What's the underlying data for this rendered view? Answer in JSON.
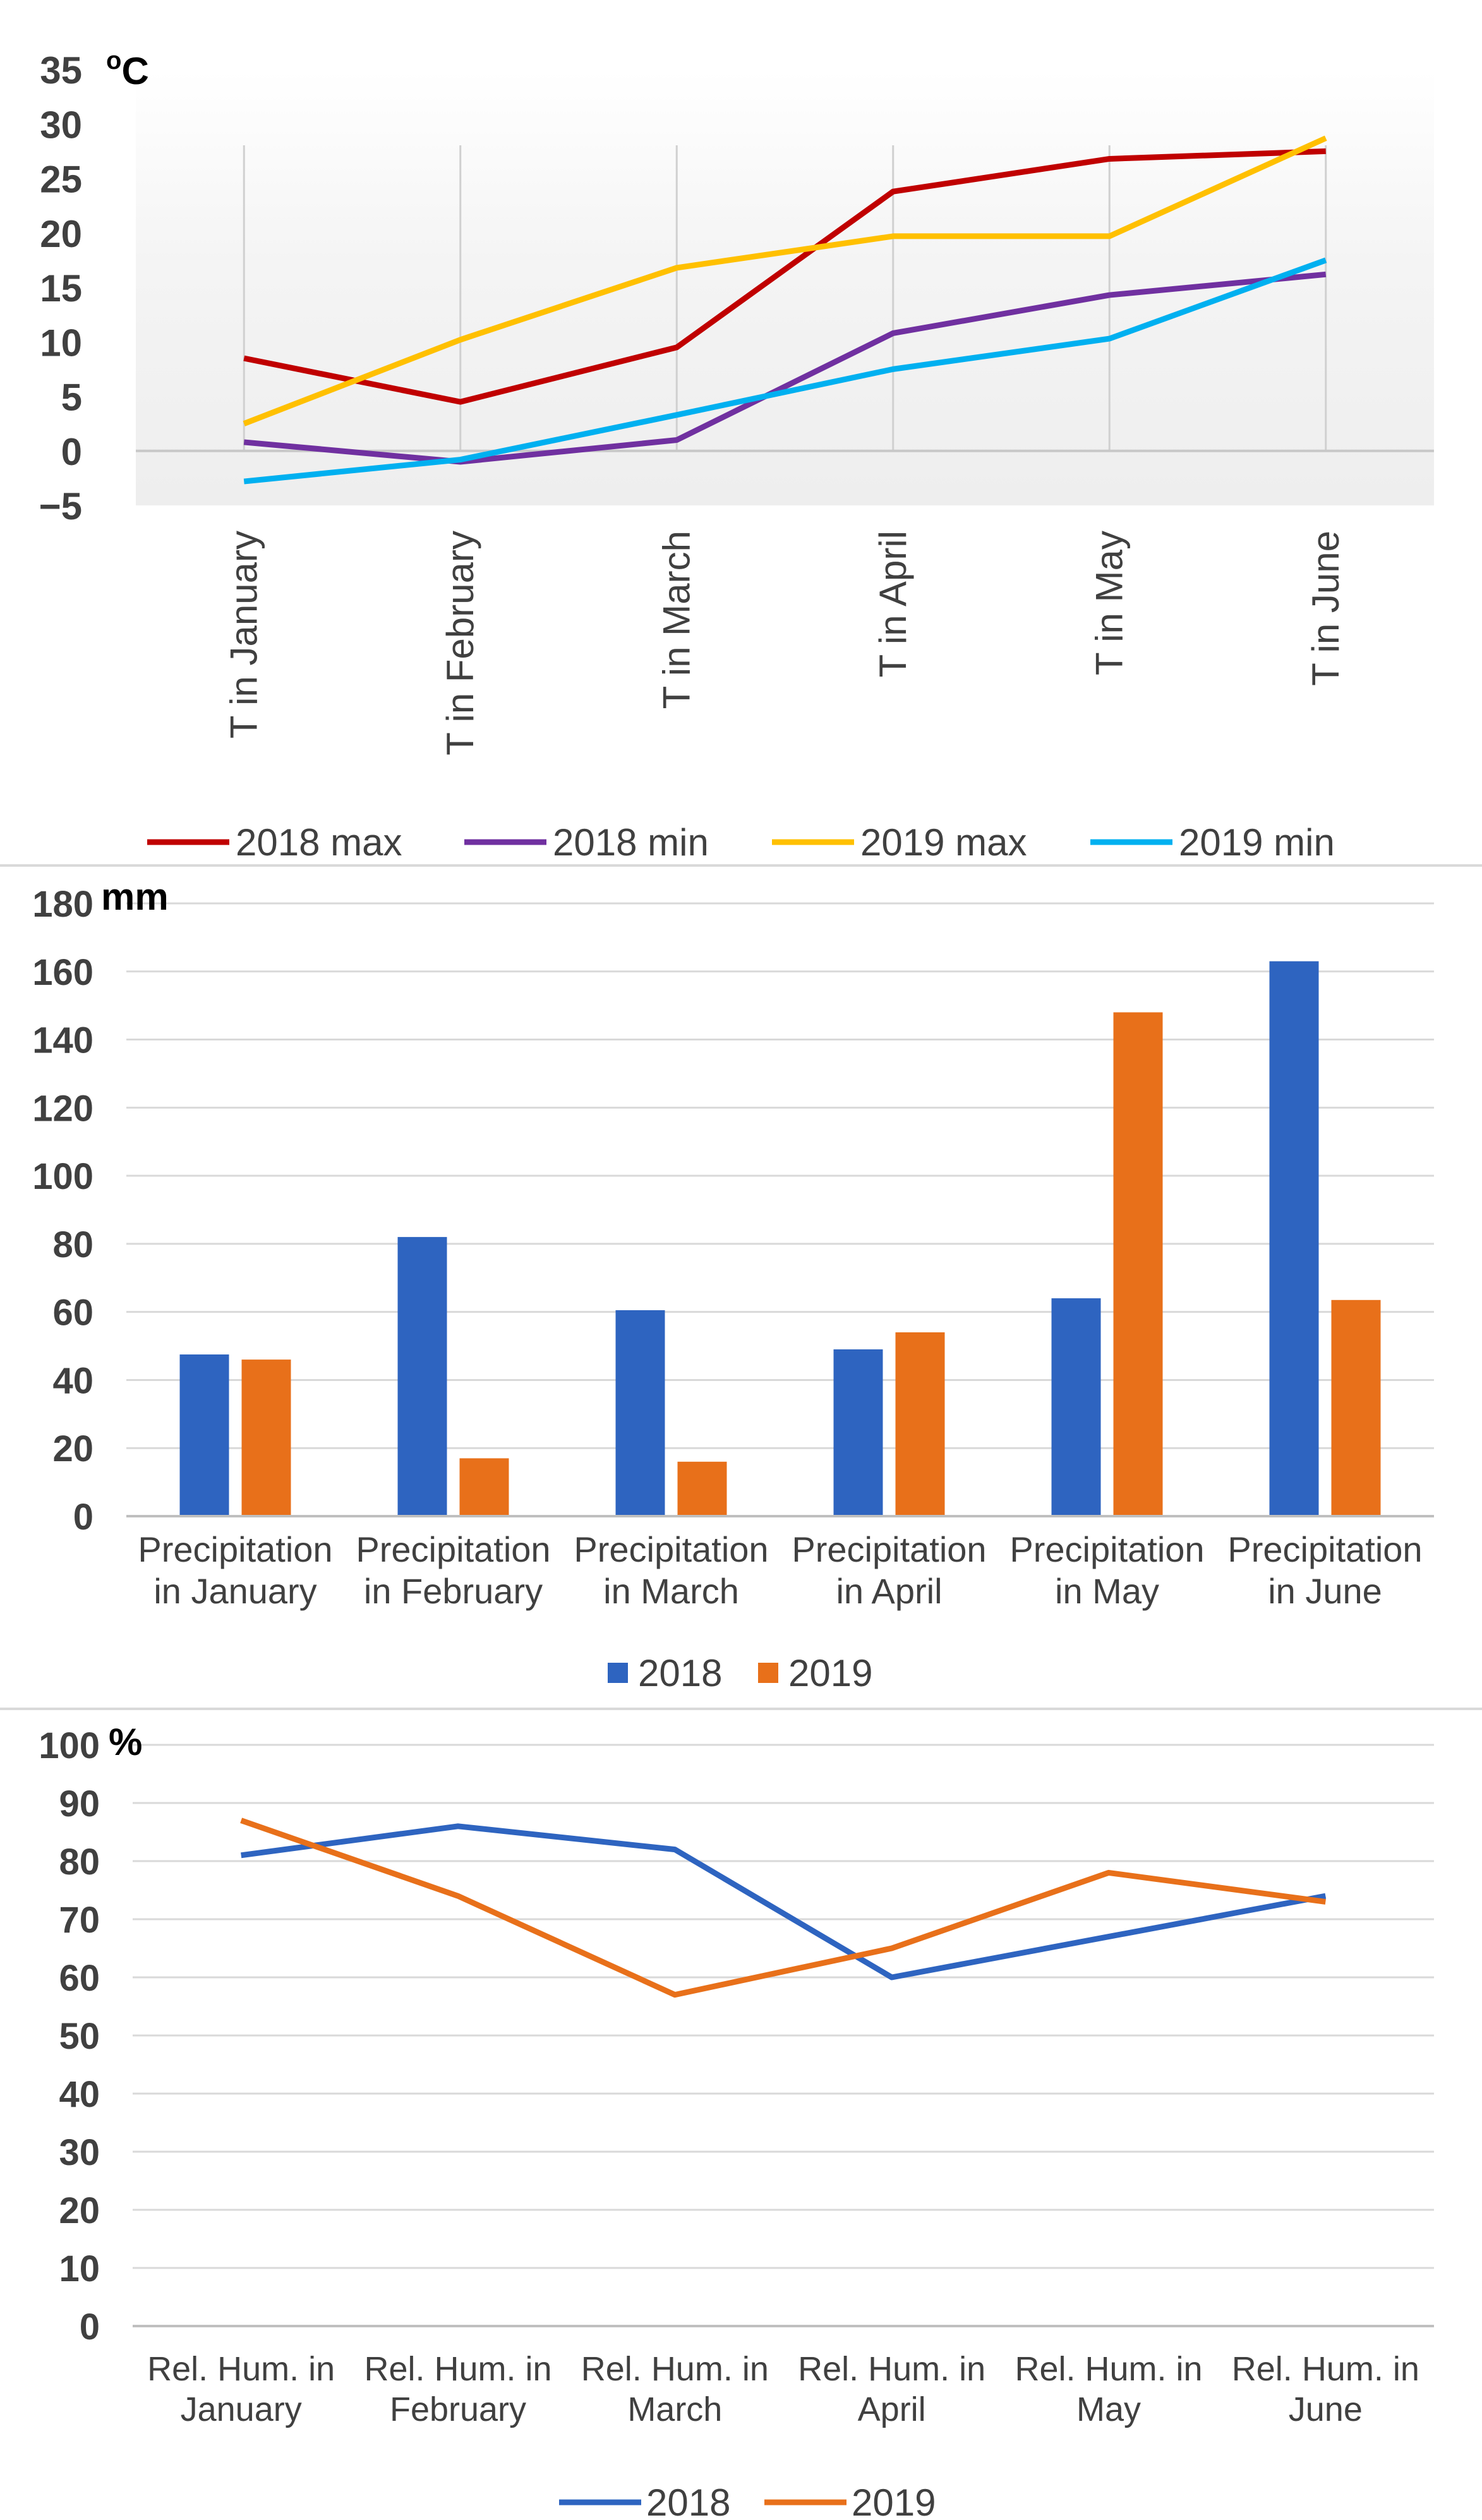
{
  "chart_data": [
    {
      "type": "line",
      "title": "",
      "unit": "°C",
      "unit_base": "C",
      "unit_sup": "o",
      "xlabel": "",
      "ylabel": "",
      "ylim": [
        -5,
        35
      ],
      "yticks": [
        -5,
        0,
        5,
        10,
        15,
        20,
        25,
        30,
        35
      ],
      "ytick_labels": [
        "−5",
        "0",
        "5",
        "10",
        "15",
        "20",
        "25",
        "30",
        "35"
      ],
      "categories": [
        "T in January",
        "T in February",
        "T in March",
        "T in April",
        "T in May",
        "T in June"
      ],
      "series": [
        {
          "name": "2018 max",
          "color": "#c00000",
          "values": [
            8.5,
            4.5,
            9.5,
            23.8,
            26.8,
            27.5
          ]
        },
        {
          "name": "2018 min",
          "color": "#7030a0",
          "values": [
            0.8,
            -1.0,
            1.0,
            10.8,
            14.3,
            16.2
          ]
        },
        {
          "name": "2019 max",
          "color": "#ffc000",
          "values": [
            2.5,
            10.2,
            16.8,
            19.7,
            19.7,
            28.7
          ]
        },
        {
          "name": "2019 min",
          "color": "#00b0f0",
          "values": [
            -2.8,
            -0.8,
            3.3,
            7.5,
            10.3,
            17.5
          ]
        }
      ],
      "legend_position": "bottom",
      "grid": "vertical"
    },
    {
      "type": "bar",
      "title": "",
      "unit": "mm",
      "xlabel": "",
      "ylabel": "",
      "ylim": [
        0,
        180
      ],
      "yticks": [
        0,
        20,
        40,
        60,
        80,
        100,
        120,
        140,
        160,
        180
      ],
      "ytick_labels": [
        "0",
        "20",
        "40",
        "60",
        "80",
        "100",
        "120",
        "140",
        "160",
        "180"
      ],
      "categories": [
        [
          "Precipitation",
          "in January"
        ],
        [
          "Precipitation",
          "in February"
        ],
        [
          "Precipitation",
          "in March"
        ],
        [
          "Precipitation",
          "in April"
        ],
        [
          "Precipitation",
          "in May"
        ],
        [
          "Precipitation",
          "in June"
        ]
      ],
      "series": [
        {
          "name": "2018",
          "color": "#2e64c0",
          "values": [
            47.5,
            82,
            60.5,
            49,
            64,
            163
          ]
        },
        {
          "name": "2019",
          "color": "#e8701a",
          "values": [
            46,
            17,
            16,
            54,
            148,
            63.5
          ]
        }
      ],
      "legend_position": "bottom",
      "grid": "horizontal"
    },
    {
      "type": "line",
      "title": "",
      "unit": "%",
      "xlabel": "",
      "ylabel": "",
      "ylim": [
        0,
        100
      ],
      "yticks": [
        0,
        10,
        20,
        30,
        40,
        50,
        60,
        70,
        80,
        90,
        100
      ],
      "ytick_labels": [
        "0",
        "10",
        "20",
        "30",
        "40",
        "50",
        "60",
        "70",
        "80",
        "90",
        "100"
      ],
      "categories": [
        [
          "Rel. Hum. in",
          "January"
        ],
        [
          "Rel. Hum. in",
          "February"
        ],
        [
          "Rel. Hum. in",
          "March"
        ],
        [
          "Rel. Hum. in",
          "April"
        ],
        [
          "Rel. Hum. in",
          "May"
        ],
        [
          "Rel. Hum. in",
          "June"
        ]
      ],
      "series": [
        {
          "name": "2018",
          "color": "#2e64c0",
          "values": [
            81,
            86,
            82,
            60,
            67,
            74
          ]
        },
        {
          "name": "2019",
          "color": "#e8701a",
          "values": [
            87,
            74,
            57,
            65,
            78,
            73
          ]
        }
      ],
      "legend_position": "bottom",
      "grid": "horizontal"
    }
  ]
}
